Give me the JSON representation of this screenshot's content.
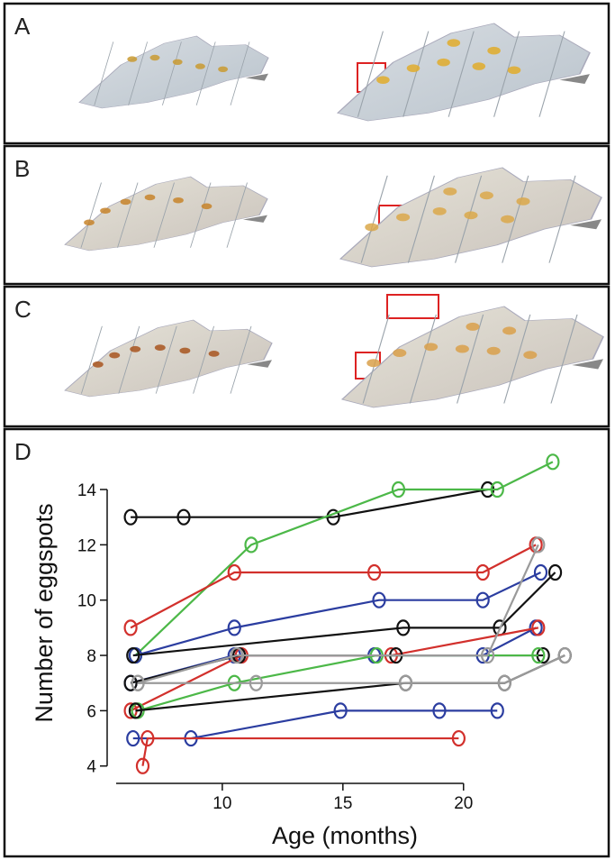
{
  "panels": [
    {
      "label": "A"
    },
    {
      "label": "B"
    },
    {
      "label": "C"
    }
  ],
  "chart_data": {
    "type": "line",
    "label": "D",
    "xlabel": "Age (months)",
    "ylabel": "Number of eggspots",
    "xlim": [
      5.6,
      24.6
    ],
    "ylim": [
      3.6,
      15.5
    ],
    "xticks": [
      10,
      15,
      20
    ],
    "yticks": [
      4,
      6,
      8,
      10,
      12,
      14
    ],
    "series": [
      {
        "color": "#111111",
        "x": [
          6.2,
          8.4,
          14.6,
          21.0
        ],
        "values": [
          13,
          13,
          13,
          14
        ]
      },
      {
        "color": "#4cb848",
        "x": [
          6.4,
          11.2,
          17.3,
          21.4,
          23.7
        ],
        "values": [
          8,
          12,
          14,
          14,
          15
        ]
      },
      {
        "color": "#d2302c",
        "x": [
          6.2,
          10.5,
          16.3,
          20.8,
          23.0
        ],
        "values": [
          9,
          11,
          11,
          11,
          12
        ]
      },
      {
        "color": "#2b3da0",
        "x": [
          6.4,
          10.5,
          16.5,
          20.8,
          23.2
        ],
        "values": [
          8,
          9,
          10,
          10,
          11
        ]
      },
      {
        "color": "#111111",
        "x": [
          6.3,
          17.5,
          21.5,
          23.8
        ],
        "values": [
          8,
          9,
          9,
          11
        ]
      },
      {
        "color": "#2b3da0",
        "x": [
          6.2,
          10.5,
          16.3,
          20.8,
          23.0
        ],
        "values": [
          7,
          8,
          8,
          8,
          9
        ]
      },
      {
        "color": "#d2302c",
        "x": [
          6.2,
          10.8,
          17.0,
          23.1
        ],
        "values": [
          6,
          8,
          8,
          9
        ]
      },
      {
        "color": "#111111",
        "x": [
          6.2,
          10.7,
          17.2,
          23.3
        ],
        "values": [
          7,
          8,
          8,
          8
        ]
      },
      {
        "color": "#4cb848",
        "x": [
          6.5,
          10.5,
          16.4,
          23.1
        ],
        "values": [
          6,
          7,
          8,
          8
        ]
      },
      {
        "color": "#111111",
        "x": [
          6.4,
          17.6,
          21.7,
          24.2
        ],
        "values": [
          6,
          7,
          7,
          8
        ]
      },
      {
        "color": "#9a9a9a",
        "x": [
          6.5,
          11.4,
          17.6,
          21.7,
          24.2
        ],
        "values": [
          7,
          7,
          7,
          7,
          8
        ]
      },
      {
        "color": "#9a9a9a",
        "x": [
          6.5,
          10.6,
          21.0,
          23.1
        ],
        "values": [
          7,
          8,
          8,
          12
        ]
      },
      {
        "color": "#2b3da0",
        "x": [
          6.3,
          8.7,
          14.9,
          19.0,
          21.4
        ],
        "values": [
          5,
          5,
          6,
          6,
          6
        ]
      },
      {
        "color": "#d2302c",
        "x": [
          6.7,
          6.9,
          19.8
        ],
        "values": [
          4,
          5,
          5
        ]
      }
    ]
  }
}
